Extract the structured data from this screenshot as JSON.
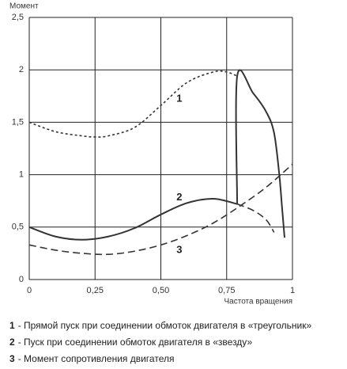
{
  "chart_data": {
    "type": "line",
    "y_label": "Момент",
    "x_label": "Частота вращения",
    "xlim": [
      0,
      1
    ],
    "ylim": [
      0,
      2.5
    ],
    "xticks": [
      0,
      {
        "value": 0.25,
        "label": "0,25"
      },
      {
        "value": 0.5,
        "label": "0,50"
      },
      {
        "value": 0.75,
        "label": "0,75"
      },
      1
    ],
    "yticks": [
      0,
      {
        "value": 0.5,
        "label": "0,5"
      },
      1,
      {
        "value": 1.5,
        "label": "1,5"
      },
      2,
      {
        "value": 2.5,
        "label": "2,5"
      }
    ],
    "grid": true,
    "color": "#333333",
    "series": [
      {
        "name": "1",
        "label_at": [
          0.57,
          1.72
        ],
        "pieces": [
          {
            "style": "short-dash",
            "x": [
              0,
              0.1,
              0.2,
              0.25,
              0.3,
              0.4,
              0.5,
              0.6,
              0.7,
              0.75,
              0.79
            ],
            "values": [
              1.5,
              1.41,
              1.37,
              1.36,
              1.37,
              1.45,
              1.66,
              1.88,
              1.98,
              1.98,
              1.94
            ]
          },
          {
            "style": "solid",
            "x": [
              0.79,
              0.79,
              0.85,
              0.9,
              0.93,
              0.95,
              0.96,
              0.97
            ],
            "values": [
              0.72,
              1.94,
              1.78,
              1.6,
              1.4,
              1.0,
              0.7,
              0.4
            ]
          }
        ]
      },
      {
        "name": "2",
        "label_at": [
          0.57,
          0.78
        ],
        "pieces": [
          {
            "style": "solid",
            "x": [
              0,
              0.1,
              0.2,
              0.3,
              0.4,
              0.5,
              0.6,
              0.7,
              0.79
            ],
            "values": [
              0.5,
              0.41,
              0.38,
              0.41,
              0.49,
              0.62,
              0.73,
              0.77,
              0.72
            ]
          },
          {
            "style": "long-dash",
            "x": [
              0.79,
              0.85,
              0.9,
              0.93
            ],
            "values": [
              0.72,
              0.66,
              0.57,
              0.45
            ]
          }
        ]
      },
      {
        "name": "3",
        "label_at": [
          0.57,
          0.28
        ],
        "pieces": [
          {
            "style": "long-dash",
            "x": [
              0,
              0.1,
              0.2,
              0.3,
              0.4,
              0.5,
              0.6,
              0.7,
              0.8,
              0.9,
              1
            ],
            "values": [
              0.33,
              0.28,
              0.25,
              0.24,
              0.27,
              0.33,
              0.42,
              0.54,
              0.7,
              0.88,
              1.1
            ]
          }
        ]
      }
    ],
    "notes": [
      {
        "key": "1",
        "text": "- Прямой пуск при соединении  обмоток двигателя  в «треугольник»"
      },
      {
        "key": "2",
        "text": "- Пуск при соединении  обмоток двигателя  в «звезду»"
      },
      {
        "key": "3",
        "text": "- Момент сопротивления  двигателя"
      }
    ]
  }
}
